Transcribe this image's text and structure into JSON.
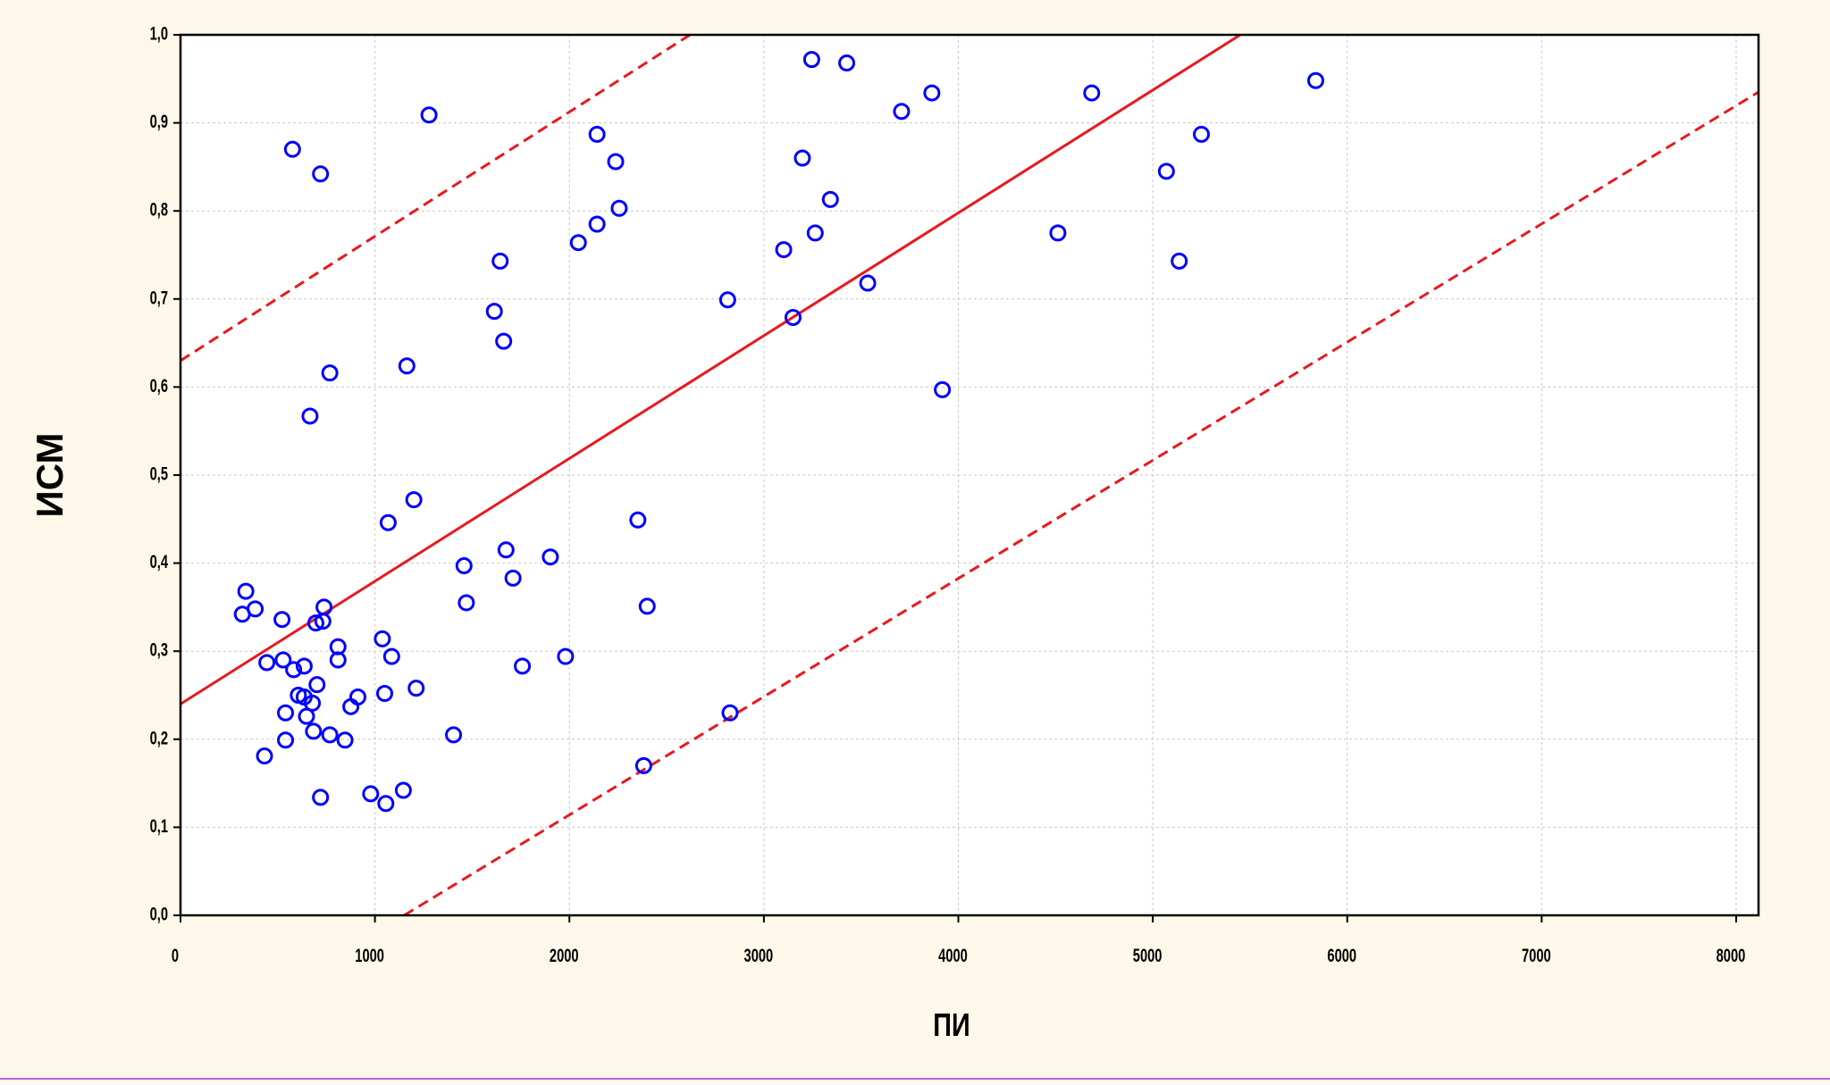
{
  "chart_data": {
    "type": "scatter",
    "x_label": "ПИ",
    "y_label": "ИСМ",
    "xlim": [
      0,
      8115
    ],
    "ylim": [
      0,
      1
    ],
    "xticks": [
      0,
      1000,
      2000,
      3000,
      4000,
      5000,
      6000,
      7000,
      8000
    ],
    "yticks": [
      {
        "value": 0,
        "label": "0,0"
      },
      {
        "value": 0.1,
        "label": "0,1"
      },
      {
        "value": 0.2,
        "label": "0,2"
      },
      {
        "value": 0.3,
        "label": "0,3"
      },
      {
        "value": 0.4,
        "label": "0,4"
      },
      {
        "value": 0.5,
        "label": "0,5"
      },
      {
        "value": 0.6,
        "label": "0,6"
      },
      {
        "value": 0.7,
        "label": "0,7"
      },
      {
        "value": 0.8,
        "label": "0,8"
      },
      {
        "value": 0.9,
        "label": "0,9"
      },
      {
        "value": 1,
        "label": "1,0"
      }
    ],
    "grid": true,
    "points": {
      "color": "#0000ff",
      "x": [
        336,
        318,
        384,
        522,
        444,
        528,
        432,
        540,
        540,
        576,
        582,
        606,
        636,
        636,
        648,
        666,
        678,
        684,
        696,
        702,
        720,
        720,
        732,
        738,
        768,
        768,
        810,
        810,
        846,
        876,
        912,
        978,
        1038,
        1050,
        1056,
        1068,
        1086,
        1146,
        1164,
        1200,
        1212,
        1278,
        1404,
        1458,
        1470,
        1614,
        1644,
        1662,
        1674,
        1710,
        1758,
        1902,
        1980,
        2046,
        2142,
        2142,
        2238,
        2256,
        2352,
        2382,
        2400,
        2814,
        2826,
        3102,
        3150,
        3198,
        3246,
        3264,
        3342,
        3426,
        3534,
        3708,
        3864,
        3918,
        4512,
        4686,
        5070,
        5136,
        5250,
        5838
      ],
      "values": [
        0.368,
        0.342,
        0.348,
        0.336,
        0.287,
        0.29,
        0.181,
        0.23,
        0.199,
        0.87,
        0.279,
        0.25,
        0.283,
        0.248,
        0.226,
        0.567,
        0.241,
        0.209,
        0.332,
        0.262,
        0.842,
        0.134,
        0.334,
        0.35,
        0.616,
        0.205,
        0.305,
        0.29,
        0.199,
        0.237,
        0.248,
        0.138,
        0.314,
        0.252,
        0.127,
        0.446,
        0.294,
        0.142,
        0.624,
        0.472,
        0.258,
        0.909,
        0.205,
        0.397,
        0.355,
        0.686,
        0.743,
        0.652,
        0.415,
        0.383,
        0.283,
        0.407,
        0.294,
        0.764,
        0.887,
        0.785,
        0.856,
        0.803,
        0.449,
        0.17,
        0.351,
        0.699,
        0.23,
        0.756,
        0.679,
        0.86,
        0.972,
        0.775,
        0.813,
        0.968,
        0.718,
        0.913,
        0.934,
        0.597,
        0.775,
        0.934,
        0.845,
        0.743,
        0.887,
        0.948
      ]
    },
    "lines": [
      {
        "color": "#e8191e",
        "style": "solid",
        "x": [
          0,
          5450
        ],
        "values": [
          0.24,
          1.0
        ]
      },
      {
        "color": "#e8191e",
        "style": "dashed",
        "x": [
          0,
          2620
        ],
        "values": [
          0.63,
          1.0
        ]
      },
      {
        "color": "#e8191e",
        "style": "dashed",
        "x": [
          1150,
          8115
        ],
        "values": [
          0,
          0.935
        ]
      }
    ]
  }
}
